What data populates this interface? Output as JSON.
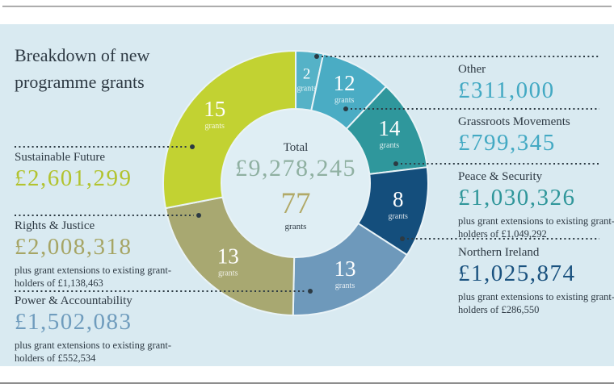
{
  "page": {
    "title": "Breakdown of new programme grants"
  },
  "colors": {
    "panel_background": "#d9eaf1",
    "donut_hole": "#dfeef4",
    "dark_text": "#2e3a44",
    "leader_dots": "#2c3a43",
    "center_total_amount": "#8fb0a1",
    "center_grants_count": "#b1a967"
  },
  "chart_data": {
    "type": "pie",
    "variant": "donut",
    "title": "Breakdown of new programme grants",
    "legend_position": "callout-labels-left-right",
    "total_label": "Total",
    "total_value": "£9,278,245",
    "total_grants": "77",
    "grants_word": "grants",
    "start_angle_deg": 0,
    "items": [
      {
        "name": "Other",
        "amount": 311000,
        "amount_label": "£311,000",
        "grants": 2,
        "color": "#55b2c7",
        "amount_color": "#43a9c3",
        "note": ""
      },
      {
        "name": "Grassroots Movements",
        "amount": 799345,
        "amount_label": "£799,345",
        "grants": 12,
        "color": "#4aacc4",
        "amount_color": "#43a9c3",
        "note": ""
      },
      {
        "name": "Peace & Security",
        "amount": 1030326,
        "amount_label": "£1,030,326",
        "grants": 14,
        "color": "#2f979c",
        "amount_color": "#2f969a",
        "note": "plus grant extensions to existing grant-holders of £1,049,292"
      },
      {
        "name": "Northern Ireland",
        "amount": 1025874,
        "amount_label": "£1,025,874",
        "grants": 8,
        "color": "#144e7c",
        "amount_color": "#1a527f",
        "note": "plus grant extensions to existing grant-holders of £286,550"
      },
      {
        "name": "Power & Accountability",
        "amount": 1502083,
        "amount_label": "£1,502,083",
        "grants": 13,
        "color": "#6e99bb",
        "amount_color": "#6f9cbd",
        "note": "plus grant extensions to existing grant-holders of £552,534"
      },
      {
        "name": "Rights & Justice",
        "amount": 2008318,
        "amount_label": "£2,008,318",
        "grants": 13,
        "color": "#a8a871",
        "amount_color": "#a6a565",
        "note": "plus grant extensions to existing grant-holders of £1,138,463"
      },
      {
        "name": "Sustainable Future",
        "amount": 2601299,
        "amount_label": "£2,601,299",
        "grants": 15,
        "color": "#c2d232",
        "amount_color": "#b2c32f",
        "note": ""
      }
    ]
  }
}
